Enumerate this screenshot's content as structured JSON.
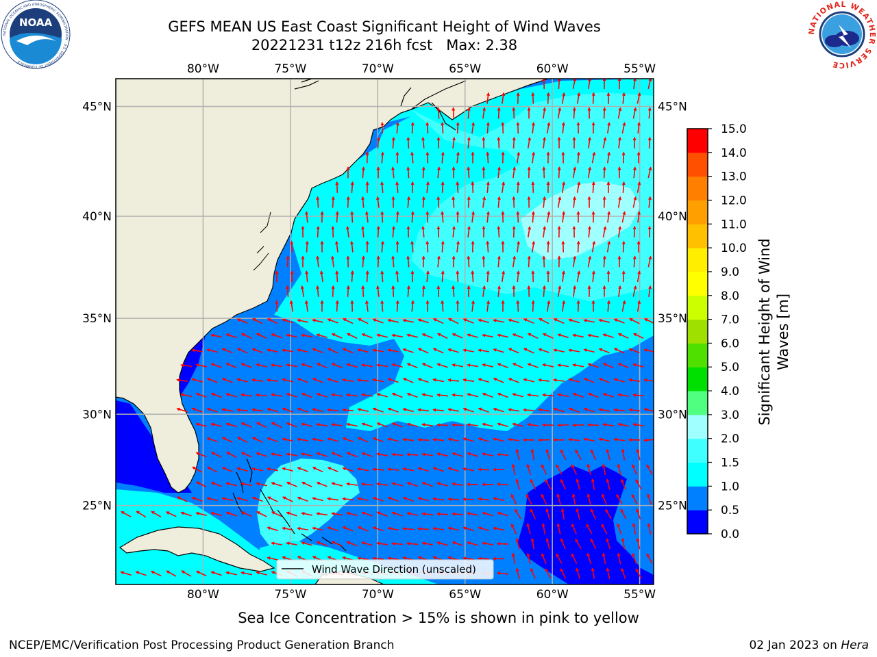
{
  "header": {
    "title_line1": "GEFS MEAN US East Coast Significant Height of Wind Waves",
    "title_line2": "20221231 t12z 216h fcst   Max: 2.38"
  },
  "logos": {
    "left": {
      "name": "noaa-logo",
      "text": "NOAA",
      "ring_text": "NATIONAL OCEANIC AND ATMOSPHERIC ADMINISTRATION · U.S. DEPARTMENT OF COMMERCE"
    },
    "right": {
      "name": "nws-logo",
      "ring_text": "NATIONAL WEATHER SERVICE"
    }
  },
  "map": {
    "lon_range": [
      -85,
      -54.2
    ],
    "lat_range": [
      20.5,
      46.2
    ],
    "lon_ticks": [
      {
        "value": -80,
        "label": "80°W"
      },
      {
        "value": -75,
        "label": "75°W"
      },
      {
        "value": -70,
        "label": "70°W"
      },
      {
        "value": -65,
        "label": "65°W"
      },
      {
        "value": -60,
        "label": "60°W"
      },
      {
        "value": -55,
        "label": "55°W"
      }
    ],
    "lat_ticks": [
      {
        "value": 45,
        "label": "45°N"
      },
      {
        "value": 40,
        "label": "40°N"
      },
      {
        "value": 35,
        "label": "35°N"
      },
      {
        "value": 30,
        "label": "30°N"
      },
      {
        "value": 25,
        "label": "25°N"
      }
    ],
    "legend_label": "Wind Wave Direction (unscaled)",
    "colors": {
      "land": "#efeedc",
      "arrow": "#ff0000",
      "grid": "#b0b0b0"
    }
  },
  "colorbar": {
    "label_line1": "Significant Height of Wind",
    "label_line2": "Waves [m]",
    "levels": [
      "0.0",
      "0.5",
      "1.0",
      "1.5",
      "2.0",
      "3.0",
      "4.0",
      "5.0",
      "6.0",
      "7.0",
      "8.0",
      "9.0",
      "10.0",
      "11.0",
      "12.0",
      "13.0",
      "14.0",
      "15.0"
    ],
    "colors": [
      "#0000ff",
      "#0080ff",
      "#00ffff",
      "#40ffff",
      "#a0ffff",
      "#50ff80",
      "#00e000",
      "#50e000",
      "#a0e000",
      "#ccff00",
      "#ffff00",
      "#ffee00",
      "#ffc000",
      "#ffa000",
      "#ff8000",
      "#ff5000",
      "#ff0000"
    ]
  },
  "footer": {
    "note": "Sea Ice Concentration > 15% is shown in pink to yellow",
    "credit": "NCEP/EMC/Verification Post Processing Product Generation Branch",
    "date": "02 Jan 2023 on ",
    "machine": "Hera"
  }
}
